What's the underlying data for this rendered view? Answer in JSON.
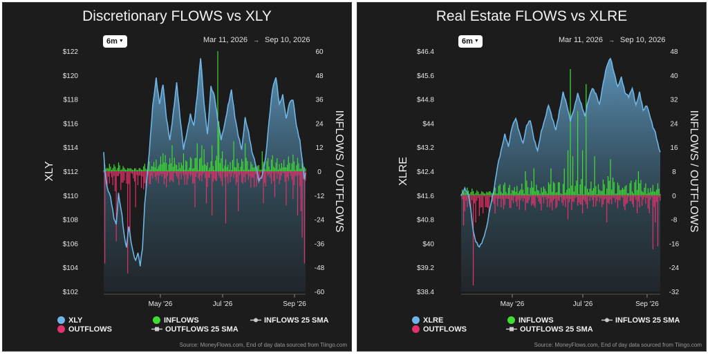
{
  "range_options": {
    "selected": "6m"
  },
  "start_date": "Mar 11, 2026",
  "end_date": "Sep 10, 2026",
  "legend": {
    "inflows": "INFLOWS",
    "outflows": "OUTFLOWS",
    "inflows_sma": "INFLOWS 25 SMA",
    "outflows_sma": "OUTFLOWS 25 SMA"
  },
  "source_note": "Source: MoneyFlows.com, End of day data sourced from Tiingo.com",
  "colors": {
    "price_line": "#6fb6e6",
    "inflows": "#3fdc33",
    "outflows": "#e0336a",
    "panel_bg": "#1c1c1c"
  },
  "chart_data": [
    {
      "type": "area",
      "title": "Discretionary FLOWS vs XLY",
      "price_series_name": "XLY",
      "ylabel_left": "XLY",
      "ylabel_right": "INFLOWS / OUTFLOWS",
      "left_ticks": [
        "$122",
        "$120",
        "$118",
        "$116",
        "$114",
        "$112",
        "$110",
        "$108",
        "$106",
        "$104",
        "$102"
      ],
      "right_ticks": [
        "60",
        "48",
        "36",
        "24",
        "12",
        "0",
        "-12",
        "-24",
        "-36",
        "-48",
        "-60"
      ],
      "x_ticks": [
        "May '26",
        "Jul '26",
        "Sep '26"
      ],
      "ylim_price": [
        102,
        122
      ],
      "ylim_flows": [
        -60,
        60
      ],
      "price_keys": [
        [
          0,
          113.6
        ],
        [
          1,
          112.1
        ],
        [
          3,
          110.6
        ],
        [
          6,
          109.8
        ],
        [
          9,
          108.1
        ],
        [
          11,
          107.6
        ],
        [
          13,
          110.2
        ],
        [
          16,
          108.4
        ],
        [
          18,
          106.6
        ],
        [
          20,
          105.6
        ],
        [
          22,
          107.4
        ],
        [
          24,
          106.1
        ],
        [
          26,
          105.2
        ],
        [
          28,
          104.6
        ],
        [
          30,
          105.3
        ],
        [
          32,
          104.2
        ],
        [
          34,
          105.6
        ],
        [
          36,
          109.2
        ],
        [
          38,
          111.4
        ],
        [
          40,
          113.6
        ],
        [
          43,
          117.5
        ],
        [
          46,
          119.8
        ],
        [
          49,
          117.6
        ],
        [
          52,
          119.2
        ],
        [
          55,
          116.4
        ],
        [
          58,
          114.6
        ],
        [
          61,
          116.9
        ],
        [
          64,
          119.4
        ],
        [
          67,
          116.4
        ],
        [
          70,
          113.8
        ],
        [
          73,
          115.2
        ],
        [
          76,
          116.8
        ],
        [
          79,
          115.8
        ],
        [
          82,
          118.3
        ],
        [
          85,
          121.4
        ],
        [
          88,
          117.6
        ],
        [
          91,
          115.1
        ],
        [
          94,
          119.1
        ],
        [
          97,
          118.3
        ],
        [
          100,
          116.2
        ],
        [
          103,
          114.6
        ],
        [
          106,
          115.9
        ],
        [
          109,
          117.5
        ],
        [
          112,
          118.8
        ],
        [
          115,
          116.5
        ],
        [
          118,
          114.9
        ],
        [
          121,
          113.8
        ],
        [
          124,
          116.5
        ],
        [
          127,
          115.3
        ],
        [
          130,
          113.6
        ],
        [
          133,
          112.6
        ],
        [
          136,
          111.2
        ],
        [
          139,
          111.7
        ],
        [
          142,
          113.2
        ],
        [
          145,
          116.2
        ],
        [
          148,
          118.8
        ],
        [
          151,
          119.8
        ],
        [
          154,
          117.6
        ],
        [
          157,
          118.4
        ],
        [
          160,
          116.4
        ],
        [
          163,
          117.7
        ],
        [
          166,
          117.9
        ],
        [
          169,
          115.8
        ],
        [
          172,
          114.6
        ],
        [
          174,
          113.0
        ],
        [
          176,
          111.4
        ],
        [
          177,
          111.8
        ]
      ],
      "inflow_spikes": [
        [
          100,
          60
        ],
        [
          101,
          25
        ],
        [
          82,
          14
        ],
        [
          86,
          13
        ],
        [
          95,
          13
        ],
        [
          114,
          15
        ],
        [
          124,
          14
        ],
        [
          139,
          10
        ],
        [
          52,
          9
        ],
        [
          60,
          13
        ],
        [
          70,
          9
        ],
        [
          88,
          11
        ],
        [
          104,
          10
        ]
      ],
      "outflow_spikes": [
        [
          1,
          -46
        ],
        [
          11,
          -35
        ],
        [
          21,
          -51
        ],
        [
          23,
          -33
        ],
        [
          28,
          -18
        ],
        [
          37,
          -12
        ],
        [
          55,
          -8
        ],
        [
          80,
          -18
        ],
        [
          90,
          -16
        ],
        [
          95,
          -22
        ],
        [
          107,
          -26
        ],
        [
          118,
          -20
        ],
        [
          132,
          -8
        ],
        [
          140,
          -16
        ],
        [
          150,
          -13
        ],
        [
          160,
          -17
        ],
        [
          166,
          -14
        ],
        [
          170,
          -22
        ],
        [
          173,
          -20
        ],
        [
          174,
          -33
        ],
        [
          176,
          -46
        ]
      ]
    },
    {
      "type": "area",
      "title": "Real Estate FLOWS vs XLRE",
      "price_series_name": "XLRE",
      "ylabel_left": "XLRE",
      "ylabel_right": "INFLOWS / OUTFLOWS",
      "left_ticks": [
        "$46.4",
        "$45.6",
        "$44.8",
        "$44",
        "$43.2",
        "$42.4",
        "$41.6",
        "$40.8",
        "$40",
        "$39.2",
        "$38.4"
      ],
      "right_ticks": [
        "48",
        "40",
        "32",
        "24",
        "16",
        "8",
        "0",
        "-8",
        "-16",
        "-24",
        "-32"
      ],
      "x_ticks": [
        "May '26",
        "Jul '26",
        "Sep '26"
      ],
      "ylim_price": [
        38.4,
        46.4
      ],
      "ylim_flows": [
        -32,
        48
      ],
      "price_keys": [
        [
          0,
          41.6
        ],
        [
          3,
          41.8
        ],
        [
          6,
          41.6
        ],
        [
          8,
          41.1
        ],
        [
          10,
          40.4
        ],
        [
          12,
          40.1
        ],
        [
          15,
          39.9
        ],
        [
          18,
          40.1
        ],
        [
          21,
          40.5
        ],
        [
          24,
          41.2
        ],
        [
          27,
          41.8
        ],
        [
          30,
          42.6
        ],
        [
          33,
          43.1
        ],
        [
          36,
          43.6
        ],
        [
          39,
          43.2
        ],
        [
          42,
          43.9
        ],
        [
          45,
          44.2
        ],
        [
          48,
          43.7
        ],
        [
          51,
          43.3
        ],
        [
          54,
          43.9
        ],
        [
          57,
          44.1
        ],
        [
          60,
          43.5
        ],
        [
          63,
          43.1
        ],
        [
          66,
          43.7
        ],
        [
          69,
          44.1
        ],
        [
          72,
          44.6
        ],
        [
          75,
          44.2
        ],
        [
          78,
          43.8
        ],
        [
          81,
          44.4
        ],
        [
          84,
          45.0
        ],
        [
          87,
          44.6
        ],
        [
          90,
          44.1
        ],
        [
          93,
          44.5
        ],
        [
          96,
          45.0
        ],
        [
          99,
          44.6
        ],
        [
          102,
          44.2
        ],
        [
          105,
          44.8
        ],
        [
          108,
          45.2
        ],
        [
          111,
          45.0
        ],
        [
          114,
          44.6
        ],
        [
          117,
          45.3
        ],
        [
          120,
          45.9
        ],
        [
          123,
          46.2
        ],
        [
          126,
          45.7
        ],
        [
          129,
          45.2
        ],
        [
          132,
          45.5
        ],
        [
          135,
          45.0
        ],
        [
          138,
          44.9
        ],
        [
          141,
          45.2
        ],
        [
          144,
          44.6
        ],
        [
          147,
          45.0
        ],
        [
          150,
          44.4
        ],
        [
          153,
          44.6
        ],
        [
          156,
          44.2
        ],
        [
          158,
          43.9
        ],
        [
          160,
          43.7
        ],
        [
          162,
          43.3
        ],
        [
          164,
          43.0
        ]
      ],
      "inflow_spikes": [
        [
          90,
          42
        ],
        [
          96,
          28
        ],
        [
          103,
          37
        ],
        [
          88,
          15
        ],
        [
          100,
          15
        ],
        [
          92,
          13
        ],
        [
          60,
          9
        ],
        [
          110,
          13
        ],
        [
          85,
          9
        ],
        [
          123,
          12
        ],
        [
          146,
          8
        ],
        [
          74,
          9
        ],
        [
          53,
          8
        ]
      ],
      "outflow_spikes": [
        [
          2,
          -10
        ],
        [
          10,
          -30
        ],
        [
          12,
          -9
        ],
        [
          18,
          -6
        ],
        [
          75,
          -5
        ],
        [
          88,
          -8
        ],
        [
          100,
          -6
        ],
        [
          120,
          -9
        ],
        [
          135,
          -5
        ],
        [
          145,
          -6
        ],
        [
          155,
          -6
        ],
        [
          158,
          -18
        ],
        [
          160,
          -9
        ],
        [
          162,
          -17
        ]
      ]
    }
  ]
}
